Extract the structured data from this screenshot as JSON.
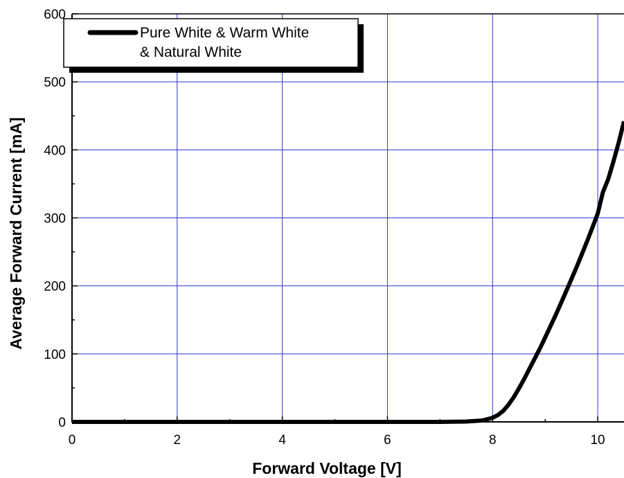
{
  "chart_data": {
    "type": "line",
    "title": "",
    "xlabel": "Forward Voltage [V]",
    "ylabel": "Average Forward Current [mA]",
    "xlim": [
      0,
      10.5
    ],
    "ylim": [
      0,
      600
    ],
    "xticks": [
      0,
      2,
      4,
      6,
      8,
      10
    ],
    "yticks": [
      0,
      100,
      200,
      300,
      400,
      500,
      600
    ],
    "grid": true,
    "grid_color": "#3333cc",
    "legend_position": "top-left",
    "series": [
      {
        "name": "Pure White & Warm White & Natural White",
        "color": "#000000",
        "x": [
          0,
          2,
          4,
          6,
          7.0,
          7.5,
          7.8,
          8.0,
          8.1,
          8.2,
          8.3,
          8.4,
          8.5,
          8.6,
          8.7,
          8.8,
          8.9,
          9.0,
          9.2,
          9.4,
          9.6,
          9.8,
          10.0,
          10.1,
          10.2,
          10.3,
          10.4,
          10.5
        ],
        "y": [
          0,
          0,
          0,
          0,
          0,
          0.5,
          2,
          6,
          10,
          16,
          25,
          36,
          49,
          63,
          78,
          93,
          108,
          124,
          157,
          192,
          228,
          266,
          306,
          338,
          357,
          383,
          411,
          442
        ]
      }
    ]
  }
}
